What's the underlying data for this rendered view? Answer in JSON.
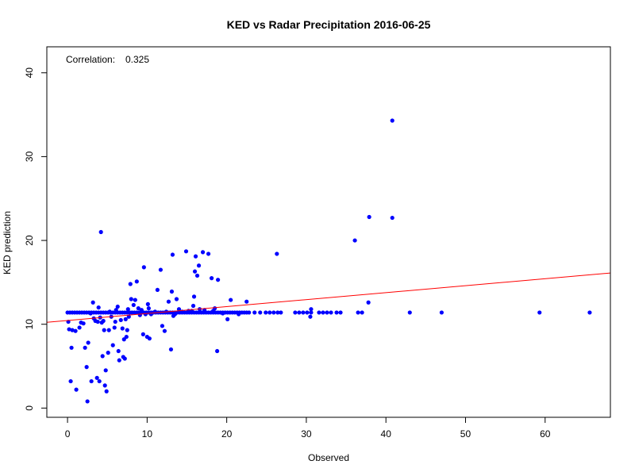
{
  "chart_data": {
    "type": "scatter",
    "title": "KED vs Radar Precipitation 2016-06-25",
    "xlabel": "Observed",
    "ylabel": "KED prediction",
    "annotation_label": "Correlation:",
    "annotation_value": "0.325",
    "xlim": [
      -2.6,
      68.2
    ],
    "ylim": [
      -1.1,
      43.1
    ],
    "x_ticks": [
      0,
      10,
      20,
      30,
      40,
      50,
      60
    ],
    "y_ticks": [
      0,
      10,
      20,
      30,
      40
    ],
    "grid": false,
    "point_color": "#0000ff",
    "line_color": "#ff0000",
    "regression_line": {
      "intercept": 10.45,
      "slope": 0.083
    },
    "baseline_points": {
      "y": 11.4,
      "x": [
        0,
        0.3,
        0.6,
        0.9,
        1.2,
        1.5,
        1.8,
        2.1,
        2.4,
        2.7,
        3.0,
        3.3,
        3.6,
        3.9,
        4.2,
        4.5,
        4.8,
        5.1,
        5.4,
        5.7,
        6.0,
        6.3,
        6.6,
        6.9,
        7.2,
        7.5,
        7.8,
        8.1,
        8.4,
        8.7,
        9.0,
        9.3,
        9.6,
        9.9,
        10.2,
        10.5,
        10.8,
        11.1,
        11.4,
        11.7,
        12.0,
        12.3,
        12.6,
        12.9,
        13.2,
        13.5,
        13.8,
        14.1,
        14.4,
        14.7,
        15.0,
        15.3,
        15.6,
        15.9,
        16.2,
        16.5,
        16.8,
        17.1,
        17.4,
        17.7,
        18.0,
        18.3,
        18.6,
        18.9,
        19.2,
        19.5,
        19.8,
        20.1,
        20.4,
        20.7,
        21.0,
        21.3,
        21.6,
        21.9,
        22.2,
        22.5,
        22.8,
        23.5,
        24.2,
        24.9,
        25.4,
        25.9,
        26.4,
        26.8,
        28.6,
        29.1,
        29.6,
        30.1,
        30.6,
        31.6,
        32.1,
        32.6,
        33.1,
        33.8,
        34.3,
        36.5,
        37.0,
        43.0,
        47.0,
        59.3,
        65.6
      ]
    },
    "points": [
      {
        "x": 0.1,
        "y": 10.3
      },
      {
        "x": 0.2,
        "y": 9.4
      },
      {
        "x": 0.4,
        "y": 3.2
      },
      {
        "x": 0.5,
        "y": 7.2
      },
      {
        "x": 0.6,
        "y": 9.3
      },
      {
        "x": 1.0,
        "y": 9.2
      },
      {
        "x": 1.1,
        "y": 2.2
      },
      {
        "x": 1.5,
        "y": 9.6
      },
      {
        "x": 1.7,
        "y": 10.2
      },
      {
        "x": 2.0,
        "y": 10.1
      },
      {
        "x": 2.2,
        "y": 7.2
      },
      {
        "x": 2.4,
        "y": 4.9
      },
      {
        "x": 2.5,
        "y": 0.8
      },
      {
        "x": 2.6,
        "y": 7.8
      },
      {
        "x": 2.9,
        "y": 11.3
      },
      {
        "x": 3.0,
        "y": 3.2
      },
      {
        "x": 3.2,
        "y": 12.6
      },
      {
        "x": 3.3,
        "y": 10.7
      },
      {
        "x": 3.5,
        "y": 10.4
      },
      {
        "x": 3.7,
        "y": 3.6
      },
      {
        "x": 3.8,
        "y": 10.3
      },
      {
        "x": 3.9,
        "y": 12.0
      },
      {
        "x": 4.0,
        "y": 3.2
      },
      {
        "x": 4.1,
        "y": 10.8
      },
      {
        "x": 4.2,
        "y": 21.0
      },
      {
        "x": 4.3,
        "y": 10.2
      },
      {
        "x": 4.4,
        "y": 6.2
      },
      {
        "x": 4.5,
        "y": 10.4
      },
      {
        "x": 4.6,
        "y": 9.3
      },
      {
        "x": 4.7,
        "y": 2.7
      },
      {
        "x": 4.8,
        "y": 4.5
      },
      {
        "x": 4.9,
        "y": 2.0
      },
      {
        "x": 5.1,
        "y": 6.6
      },
      {
        "x": 5.2,
        "y": 9.3
      },
      {
        "x": 5.3,
        "y": 11.5
      },
      {
        "x": 5.5,
        "y": 10.9
      },
      {
        "x": 5.7,
        "y": 7.5
      },
      {
        "x": 5.9,
        "y": 9.6
      },
      {
        "x": 6.0,
        "y": 10.3
      },
      {
        "x": 6.1,
        "y": 11.7
      },
      {
        "x": 6.3,
        "y": 12.1
      },
      {
        "x": 6.4,
        "y": 6.8
      },
      {
        "x": 6.5,
        "y": 5.7
      },
      {
        "x": 6.7,
        "y": 10.5
      },
      {
        "x": 6.9,
        "y": 9.5
      },
      {
        "x": 7.0,
        "y": 6.1
      },
      {
        "x": 7.1,
        "y": 8.2
      },
      {
        "x": 7.2,
        "y": 5.9
      },
      {
        "x": 7.3,
        "y": 10.6
      },
      {
        "x": 7.4,
        "y": 8.5
      },
      {
        "x": 7.5,
        "y": 9.3
      },
      {
        "x": 7.6,
        "y": 11.8
      },
      {
        "x": 7.7,
        "y": 10.9
      },
      {
        "x": 7.8,
        "y": 11.4
      },
      {
        "x": 7.9,
        "y": 14.8
      },
      {
        "x": 8.0,
        "y": 13.0
      },
      {
        "x": 8.3,
        "y": 12.3
      },
      {
        "x": 8.5,
        "y": 12.9
      },
      {
        "x": 8.7,
        "y": 15.1
      },
      {
        "x": 8.9,
        "y": 11.9
      },
      {
        "x": 9.1,
        "y": 11.1
      },
      {
        "x": 9.3,
        "y": 11.7
      },
      {
        "x": 9.5,
        "y": 8.8
      },
      {
        "x": 9.6,
        "y": 16.8
      },
      {
        "x": 9.8,
        "y": 11.2
      },
      {
        "x": 10.0,
        "y": 8.5
      },
      {
        "x": 10.1,
        "y": 12.4
      },
      {
        "x": 10.2,
        "y": 11.9
      },
      {
        "x": 10.3,
        "y": 8.3
      },
      {
        "x": 10.5,
        "y": 11.2
      },
      {
        "x": 11.0,
        "y": 11.5
      },
      {
        "x": 11.3,
        "y": 14.1
      },
      {
        "x": 11.7,
        "y": 16.5
      },
      {
        "x": 11.9,
        "y": 9.8
      },
      {
        "x": 12.2,
        "y": 9.2
      },
      {
        "x": 12.4,
        "y": 11.5
      },
      {
        "x": 12.7,
        "y": 12.7
      },
      {
        "x": 13.0,
        "y": 7.0
      },
      {
        "x": 13.1,
        "y": 13.9
      },
      {
        "x": 13.2,
        "y": 18.3
      },
      {
        "x": 13.3,
        "y": 11.0
      },
      {
        "x": 13.5,
        "y": 11.2
      },
      {
        "x": 13.7,
        "y": 13.0
      },
      {
        "x": 14.0,
        "y": 11.8
      },
      {
        "x": 14.4,
        "y": 11.5
      },
      {
        "x": 14.9,
        "y": 18.7
      },
      {
        "x": 15.2,
        "y": 11.6
      },
      {
        "x": 15.6,
        "y": 11.6
      },
      {
        "x": 15.8,
        "y": 12.2
      },
      {
        "x": 15.9,
        "y": 13.3
      },
      {
        "x": 16.0,
        "y": 16.3
      },
      {
        "x": 16.1,
        "y": 18.1
      },
      {
        "x": 16.3,
        "y": 15.8
      },
      {
        "x": 16.5,
        "y": 17.0
      },
      {
        "x": 16.6,
        "y": 11.8
      },
      {
        "x": 17.0,
        "y": 18.6
      },
      {
        "x": 17.2,
        "y": 11.7
      },
      {
        "x": 17.7,
        "y": 18.4
      },
      {
        "x": 18.1,
        "y": 15.5
      },
      {
        "x": 18.3,
        "y": 11.6
      },
      {
        "x": 18.5,
        "y": 11.9
      },
      {
        "x": 18.8,
        "y": 6.8
      },
      {
        "x": 18.9,
        "y": 15.3
      },
      {
        "x": 19.5,
        "y": 11.3
      },
      {
        "x": 20.1,
        "y": 10.6
      },
      {
        "x": 20.5,
        "y": 12.9
      },
      {
        "x": 21.5,
        "y": 11.2
      },
      {
        "x": 22.5,
        "y": 12.7
      },
      {
        "x": 26.3,
        "y": 18.4
      },
      {
        "x": 30.5,
        "y": 10.9
      },
      {
        "x": 30.6,
        "y": 11.8
      },
      {
        "x": 36.1,
        "y": 20.0
      },
      {
        "x": 37.8,
        "y": 12.6
      },
      {
        "x": 37.9,
        "y": 22.8
      },
      {
        "x": 40.8,
        "y": 22.7
      },
      {
        "x": 40.8,
        "y": 34.3
      }
    ]
  }
}
